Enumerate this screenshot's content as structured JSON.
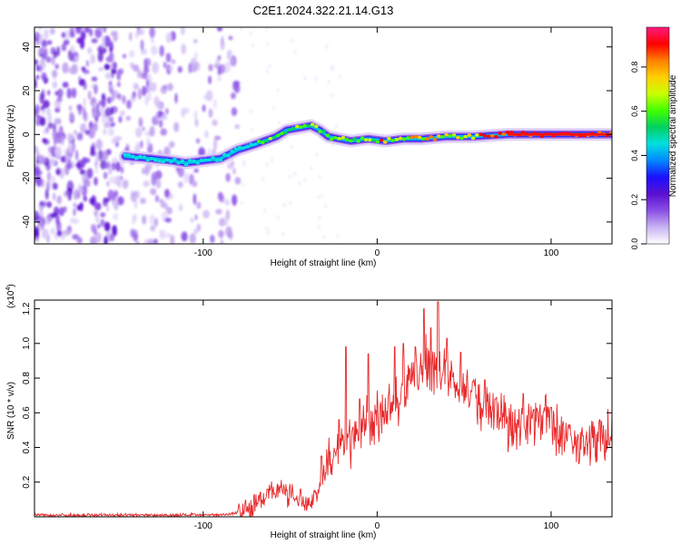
{
  "figure": {
    "title": "C2E1.2024.322.21.14.G13"
  },
  "chart_data": [
    {
      "type": "heatmap",
      "xlabel": "Height of straight line (km)",
      "ylabel": "Frequency (Hz)",
      "xlim": [
        -197,
        135
      ],
      "ylim": [
        -50,
        49
      ],
      "xticks": [
        -100,
        0,
        100
      ],
      "yticks": [
        -40,
        -20,
        0,
        20,
        40
      ],
      "colorbar": {
        "label": "Normalized spectral amplitude",
        "ticks": [
          0.0,
          0.2,
          0.4,
          0.6,
          0.8
        ],
        "range": [
          0,
          0.98
        ],
        "colormap": [
          "#ffffff",
          "#c9b3f2",
          "#8a4fe6",
          "#5a10d0",
          "#1a10ff",
          "#0088ff",
          "#00e0e0",
          "#00d060",
          "#40ff00",
          "#c8ff00",
          "#ffd000",
          "#ff8000",
          "#ff0000",
          "#ff1a80"
        ]
      },
      "frequency_trend": {
        "height_km": [
          -145,
          -130,
          -118,
          -110,
          -100,
          -90,
          -80,
          -72,
          -65,
          -58,
          -52,
          -45,
          -38,
          -33,
          -28,
          -22,
          -15,
          -5,
          5,
          15,
          25,
          40,
          55,
          75,
          100,
          135
        ],
        "frequency_hz": [
          -10,
          -11,
          -12,
          -13,
          -12,
          -11,
          -7,
          -5,
          -3,
          -1,
          2,
          3,
          4,
          2,
          -1,
          -2,
          -3,
          -2,
          -3,
          -2,
          -2,
          -1,
          -1,
          0,
          0,
          0
        ]
      },
      "grid": false
    },
    {
      "type": "line",
      "xlabel": "Height of straight line (km)",
      "ylabel": "SNR (10 * v/v)",
      "multiplier_label": "(x10",
      "multiplier_exponent": "4",
      "multiplier_close": ")",
      "xlim": [
        -197,
        135
      ],
      "ylim": [
        0,
        1.25
      ],
      "xticks": [
        -100,
        0,
        100
      ],
      "yticks": [
        0.2,
        0.4,
        0.6,
        0.8,
        1.0,
        1.2
      ],
      "series": [
        {
          "color": "#e8292b",
          "envelope": {
            "x": [
              -197,
              -150,
              -100,
              -85,
              -75,
              -68,
              -62,
              -56,
              -50,
              -44,
              -38,
              -32,
              -28,
              -24,
              -20,
              -15,
              -10,
              -5,
              0,
              5,
              10,
              15,
              20,
              25,
              30,
              35,
              40,
              45,
              50,
              55,
              60,
              65,
              70,
              75,
              80,
              85,
              90,
              95,
              100,
              105,
              110,
              115,
              120,
              125,
              130,
              135
            ],
            "y": [
              0.01,
              0.01,
              0.01,
              0.015,
              0.04,
              0.08,
              0.14,
              0.17,
              0.12,
              0.09,
              0.08,
              0.18,
              0.32,
              0.35,
              0.42,
              0.45,
              0.48,
              0.55,
              0.55,
              0.62,
              0.66,
              0.72,
              0.8,
              0.85,
              0.9,
              0.85,
              0.82,
              0.76,
              0.72,
              0.68,
              0.64,
              0.62,
              0.6,
              0.55,
              0.52,
              0.55,
              0.57,
              0.58,
              0.55,
              0.5,
              0.42,
              0.4,
              0.45,
              0.43,
              0.48,
              0.45
            ]
          },
          "spikes": [
            [
              -63,
              0.16
            ],
            [
              -44,
              0.16
            ],
            [
              -32,
              0.35
            ],
            [
              -22,
              0.56
            ],
            [
              -18,
              0.98
            ],
            [
              -10,
              0.68
            ],
            [
              -5,
              0.94
            ],
            [
              10,
              0.98
            ],
            [
              15,
              1.0
            ],
            [
              22,
              0.98
            ],
            [
              27,
              1.2
            ],
            [
              31,
              1.09
            ],
            [
              35,
              1.24
            ],
            [
              40,
              1.03
            ],
            [
              48,
              0.95
            ],
            [
              55,
              0.78
            ],
            [
              62,
              0.79
            ],
            [
              68,
              0.68
            ],
            [
              84,
              0.71
            ],
            [
              90,
              0.62
            ],
            [
              100,
              0.63
            ],
            [
              110,
              0.53
            ],
            [
              128,
              0.56
            ]
          ]
        }
      ],
      "grid": false
    }
  ]
}
